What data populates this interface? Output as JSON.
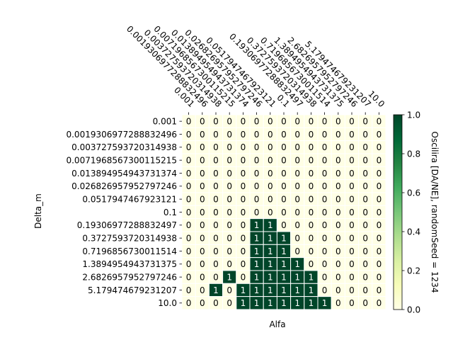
{
  "chart_data": {
    "type": "heatmap",
    "title": "",
    "xlabel": "Alfa",
    "ylabel": "Delta_m",
    "x_categories": [
      "0.001",
      "0.0019306977288832496",
      "0.003727593720314938",
      "0.0071968567300115215",
      "0.013894954943731374",
      "0.026826957952797246",
      "0.0517947467923121",
      "0.1",
      "0.19306977288832497",
      "0.3727593720314938",
      "0.7196856730011514",
      "1.3894954943731375",
      "2.6826957952797246",
      "5.179474679231207",
      "10.0"
    ],
    "y_categories": [
      "0.001",
      "0.0019306977288832496",
      "0.003727593720314938",
      "0.0071968567300115215",
      "0.013894954943731374",
      "0.026826957952797246",
      "0.0517947467923121",
      "0.1",
      "0.19306977288832497",
      "0.3727593720314938",
      "0.7196856730011514",
      "1.3894954943731375",
      "2.6826957952797246",
      "5.179474679231207",
      "10.0"
    ],
    "values": [
      [
        0,
        0,
        0,
        0,
        0,
        0,
        0,
        0,
        0,
        0,
        0,
        0,
        0,
        0,
        0
      ],
      [
        0,
        0,
        0,
        0,
        0,
        0,
        0,
        0,
        0,
        0,
        0,
        0,
        0,
        0,
        0
      ],
      [
        0,
        0,
        0,
        0,
        0,
        0,
        0,
        0,
        0,
        0,
        0,
        0,
        0,
        0,
        0
      ],
      [
        0,
        0,
        0,
        0,
        0,
        0,
        0,
        0,
        0,
        0,
        0,
        0,
        0,
        0,
        0
      ],
      [
        0,
        0,
        0,
        0,
        0,
        0,
        0,
        0,
        0,
        0,
        0,
        0,
        0,
        0,
        0
      ],
      [
        0,
        0,
        0,
        0,
        0,
        0,
        0,
        0,
        0,
        0,
        0,
        0,
        0,
        0,
        0
      ],
      [
        0,
        0,
        0,
        0,
        0,
        0,
        0,
        0,
        0,
        0,
        0,
        0,
        0,
        0,
        0
      ],
      [
        0,
        0,
        0,
        0,
        0,
        0,
        0,
        0,
        0,
        0,
        0,
        0,
        0,
        0,
        0
      ],
      [
        0,
        0,
        0,
        0,
        0,
        1,
        1,
        0,
        0,
        0,
        0,
        0,
        0,
        0,
        0
      ],
      [
        0,
        0,
        0,
        0,
        0,
        1,
        1,
        1,
        0,
        0,
        0,
        0,
        0,
        0,
        0
      ],
      [
        0,
        0,
        0,
        0,
        0,
        1,
        1,
        1,
        0,
        0,
        0,
        0,
        0,
        0,
        0
      ],
      [
        0,
        0,
        0,
        0,
        0,
        1,
        1,
        1,
        1,
        0,
        0,
        0,
        0,
        0,
        0
      ],
      [
        0,
        0,
        0,
        1,
        0,
        1,
        1,
        1,
        1,
        1,
        0,
        0,
        0,
        0,
        0
      ],
      [
        0,
        0,
        1,
        0,
        1,
        1,
        1,
        1,
        1,
        1,
        0,
        0,
        0,
        0,
        0
      ],
      [
        0,
        0,
        0,
        0,
        1,
        1,
        1,
        1,
        1,
        1,
        1,
        0,
        0,
        0,
        0
      ]
    ],
    "colorbar": {
      "label": "Oscilira [DA/NE], randomSeed = 1234",
      "range": [
        0.0,
        1.0
      ],
      "ticks": [
        "0.0",
        "0.2",
        "0.4",
        "0.6",
        "0.8",
        "1.0"
      ],
      "colormap": "YlGn",
      "color_low": "#ffffe5",
      "color_high": "#004529"
    },
    "cell_text_color_low": "#000000",
    "cell_text_color_high": "#ffffff",
    "grid_line_color": "#ffffff"
  }
}
